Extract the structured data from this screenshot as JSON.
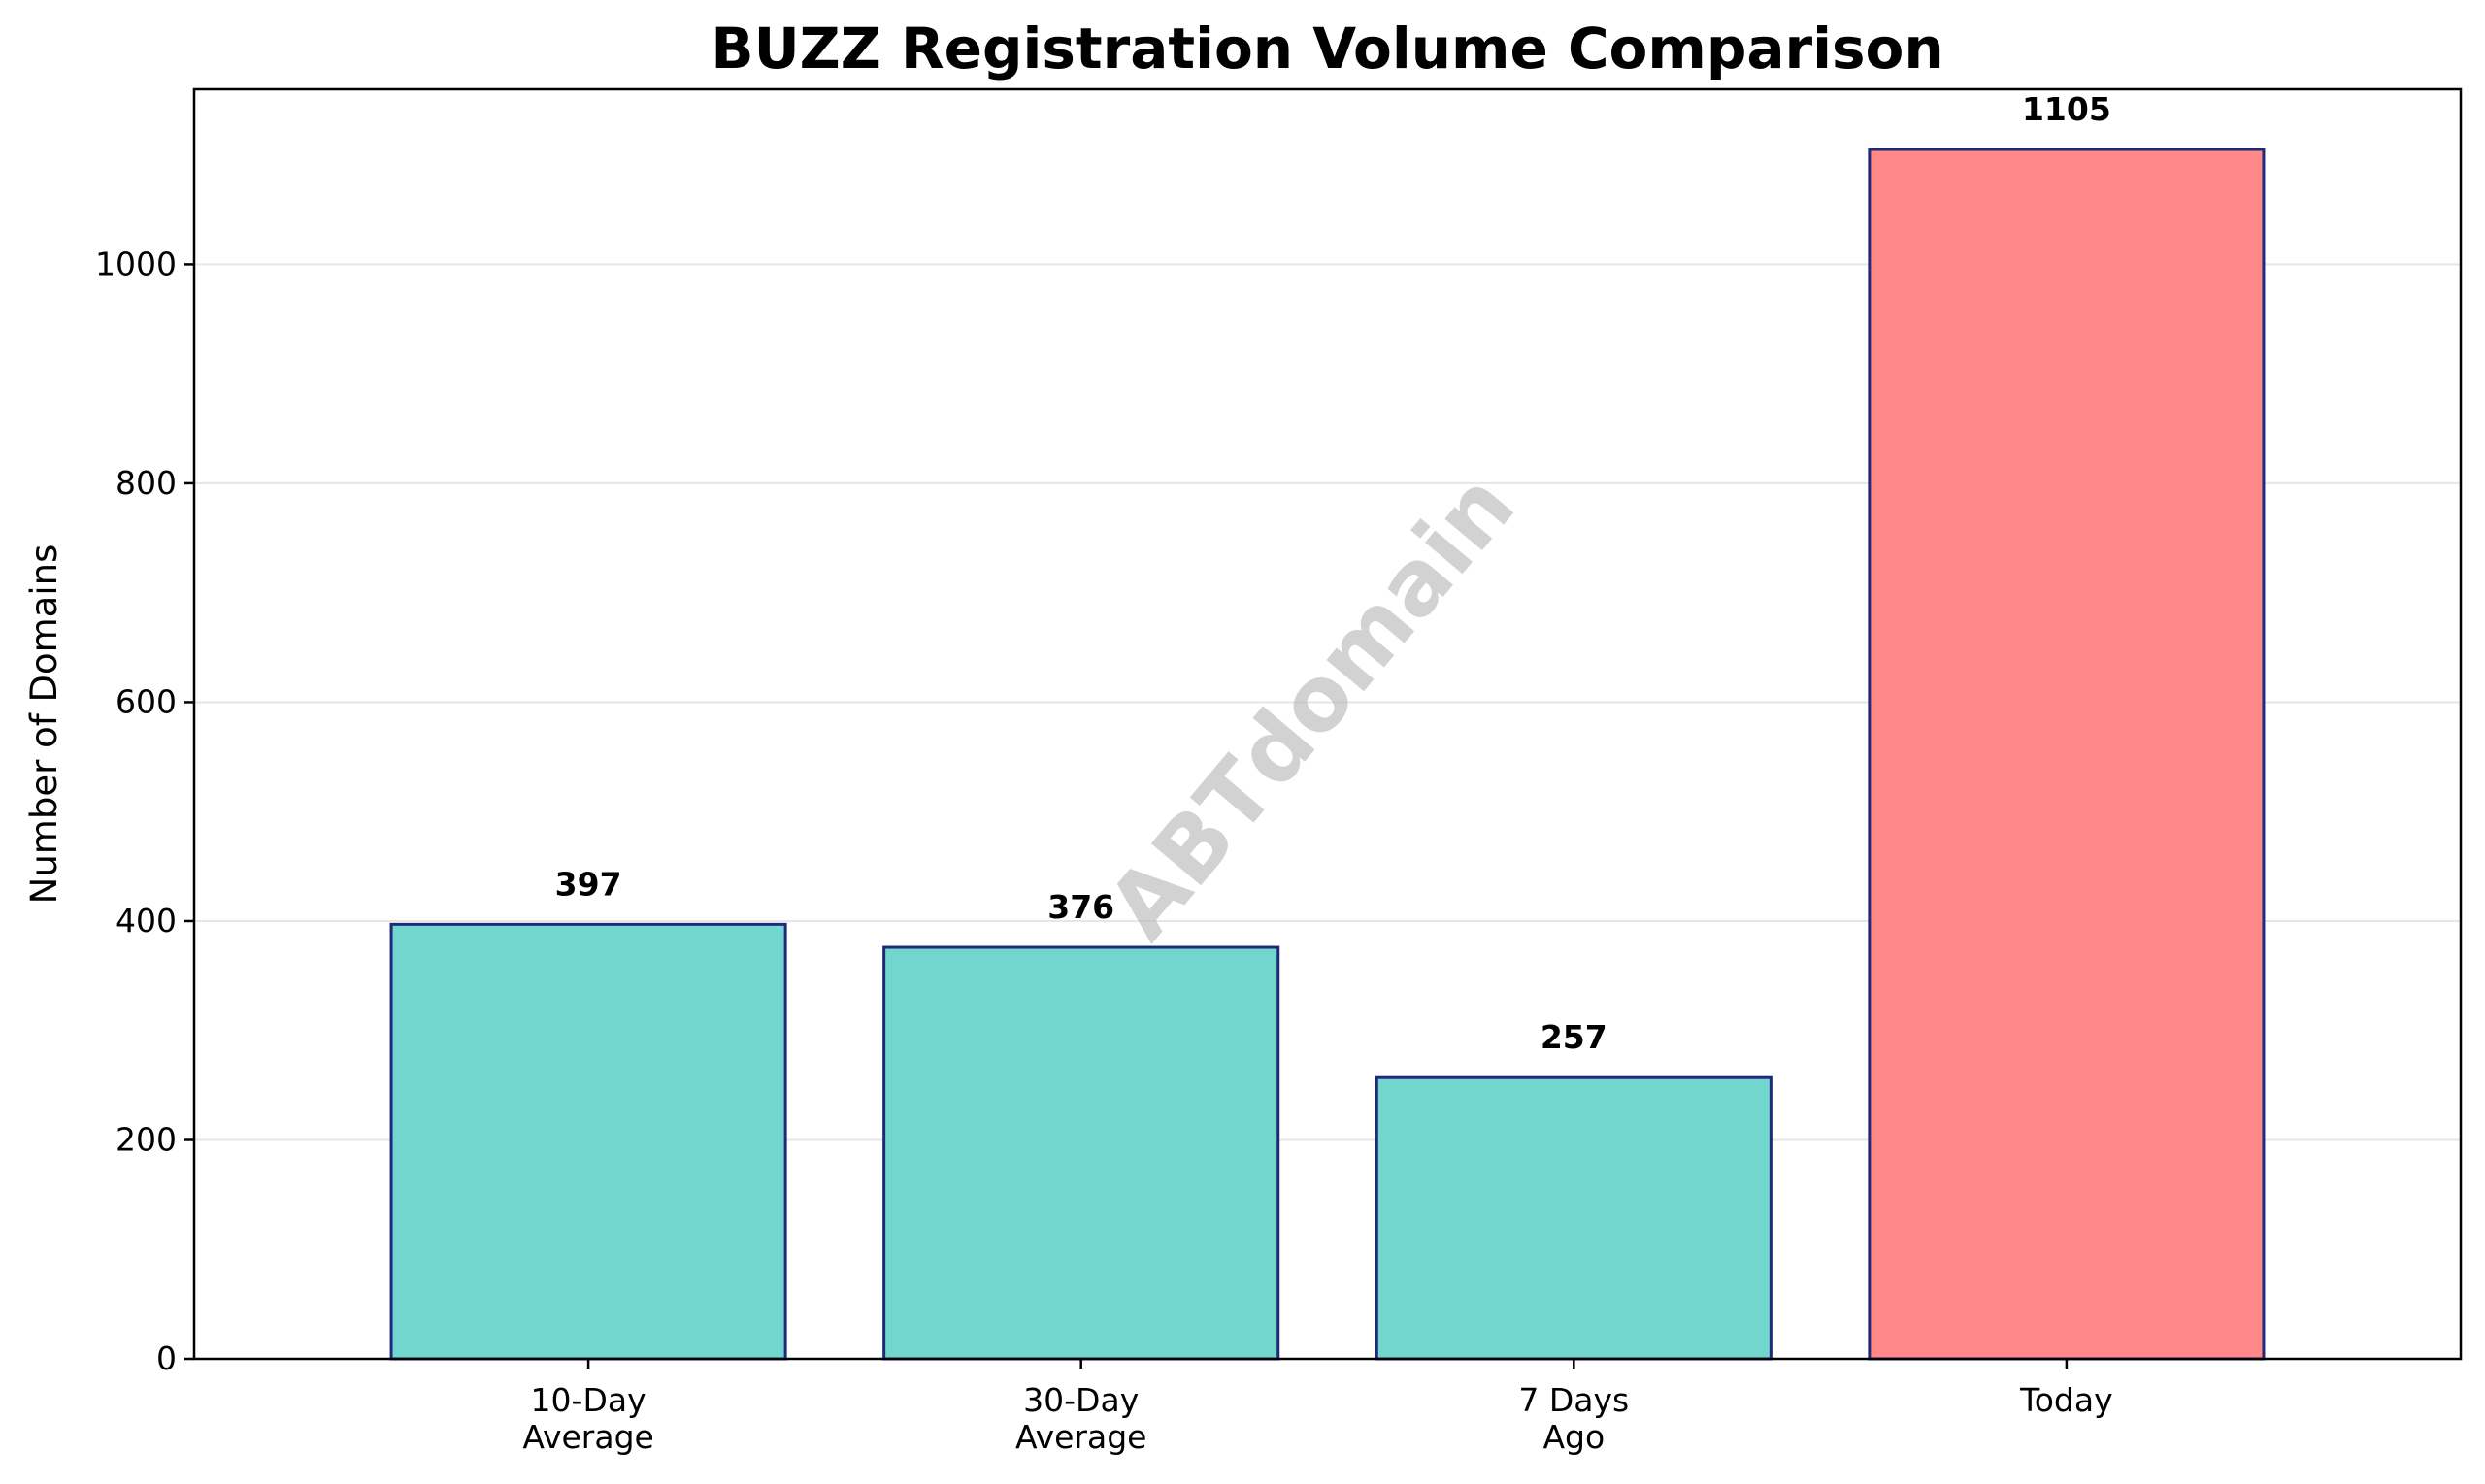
{
  "chart_data": {
    "type": "bar",
    "title": "BUZZ Registration Volume Comparison",
    "xlabel": "",
    "ylabel": "Number of Domains",
    "categories": [
      [
        "10-Day",
        "Average"
      ],
      [
        "30-Day",
        "Average"
      ],
      [
        "7 Days",
        "Ago"
      ],
      [
        "Today"
      ]
    ],
    "values": [
      397,
      376,
      257,
      1105
    ],
    "data_labels": [
      "397",
      "376",
      "257",
      "1105"
    ],
    "bar_colors": [
      "#72d6cf",
      "#72d6cf",
      "#72d6cf",
      "#ff8888"
    ],
    "bar_edge_color": "#1f2a7a",
    "ylim": [
      0,
      1160
    ],
    "yticks": [
      0,
      200,
      400,
      600,
      800,
      1000
    ],
    "grid": "y",
    "grid_color": "#e6e6e6",
    "watermark": "ABTdomain"
  }
}
